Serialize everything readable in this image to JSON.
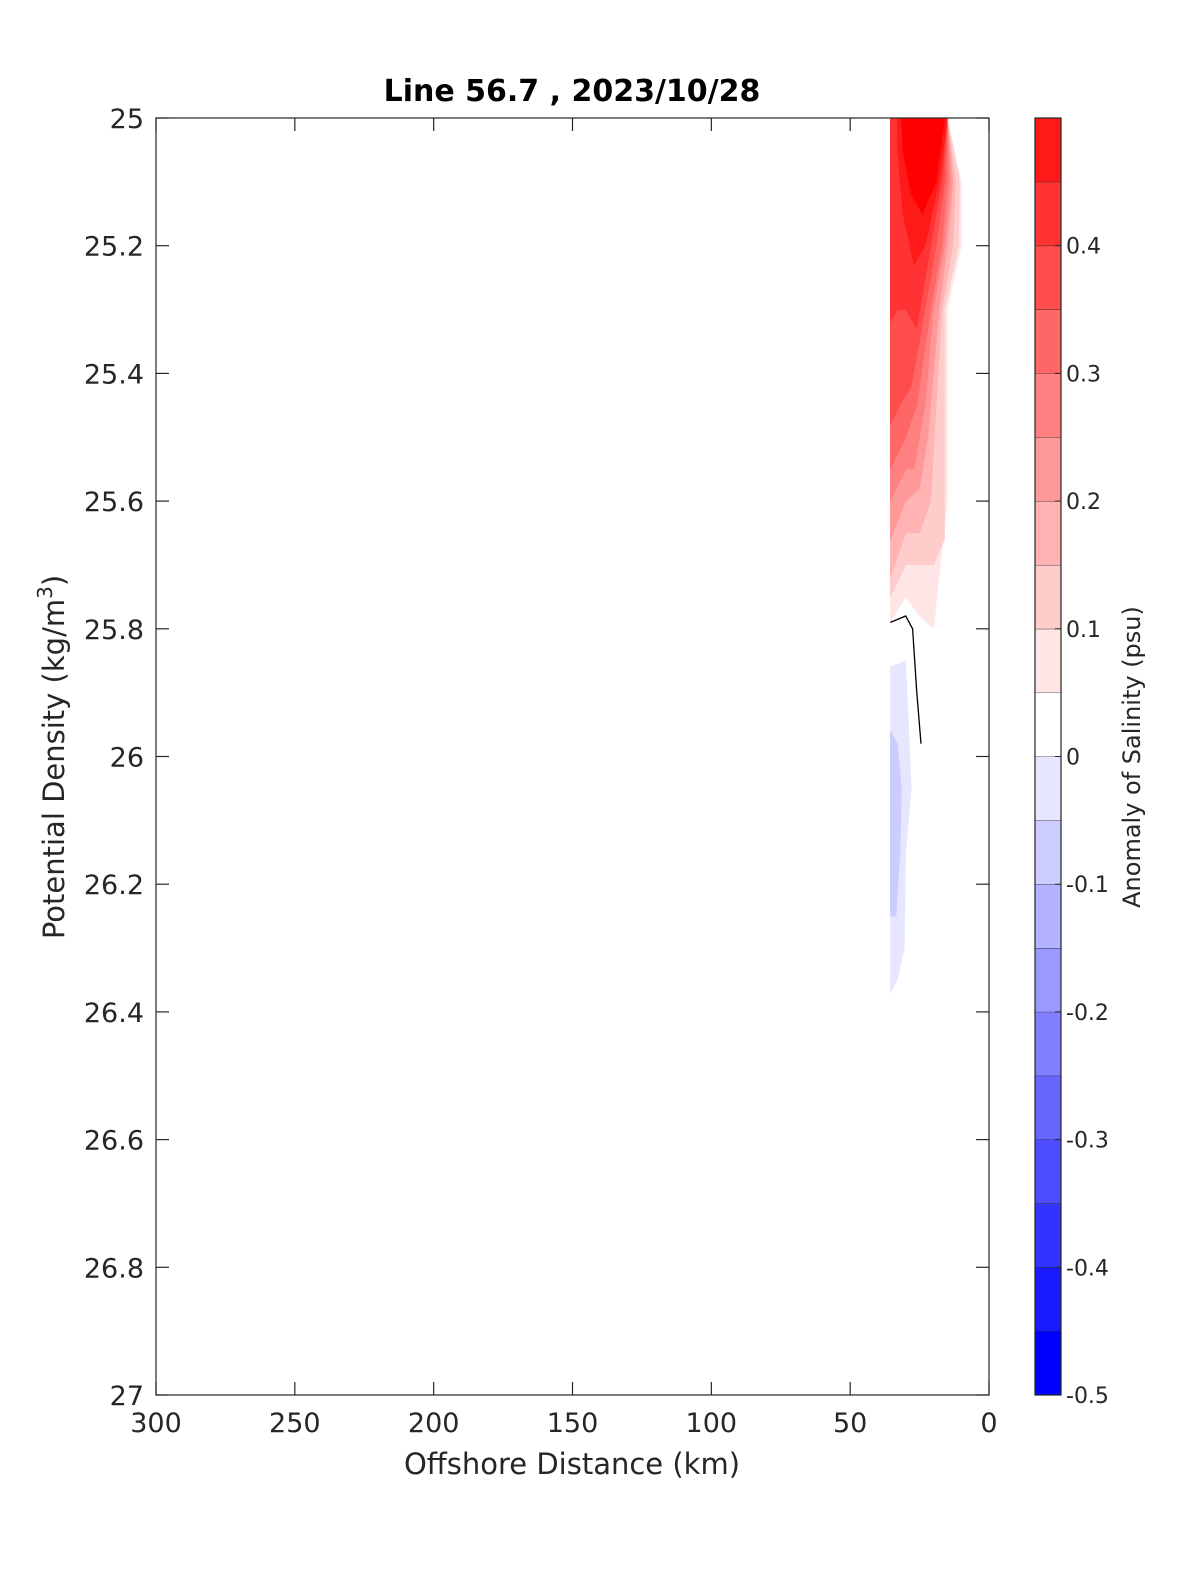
{
  "chart_data": {
    "type": "contour",
    "title": "Line 56.7 , 2023/10/28",
    "xlabel": "Offshore Distance (km)",
    "ylabel": {
      "text": "Potential Density (kg/m",
      "superscript": "3",
      "suffix": ")"
    },
    "x_range": [
      300,
      0
    ],
    "y_range": [
      25,
      27
    ],
    "x_reversed": true,
    "y_reversed": true,
    "x_ticks": [
      "300",
      "250",
      "200",
      "150",
      "100",
      "50",
      "0"
    ],
    "x_tick_values": [
      300,
      250,
      200,
      150,
      100,
      50,
      0
    ],
    "y_ticks": [
      "25",
      "25.2",
      "25.4",
      "25.6",
      "25.8",
      "26",
      "26.2",
      "26.4",
      "26.6",
      "26.8",
      "27"
    ],
    "y_tick_values": [
      25,
      25.2,
      25.4,
      25.6,
      25.8,
      26,
      26.2,
      26.4,
      26.6,
      26.8,
      27
    ],
    "colorbar": {
      "label": "Anomaly of Salinity (psu)",
      "range": [
        -0.5,
        0.5
      ],
      "tick_labels": [
        "-0.5",
        "-0.4",
        "-0.3",
        "-0.2",
        "-0.1",
        "0",
        "0.1",
        "0.2",
        "0.3",
        "0.4"
      ],
      "tick_values": [
        -0.5,
        -0.4,
        -0.3,
        -0.2,
        -0.1,
        0,
        0.1,
        0.2,
        0.3,
        0.4
      ],
      "levels": [
        -0.5,
        -0.45,
        -0.4,
        -0.35,
        -0.3,
        -0.25,
        -0.2,
        -0.15,
        -0.1,
        -0.05,
        0,
        0.05,
        0.1,
        0.15,
        0.2,
        0.25,
        0.3,
        0.35,
        0.4,
        0.45,
        0.5
      ],
      "colors": [
        "#0000ff",
        "#1a1aff",
        "#3333ff",
        "#4d4dff",
        "#6666ff",
        "#8080ff",
        "#9999ff",
        "#b3b3ff",
        "#ccccff",
        "#e6e6ff",
        "#ffffff",
        "#ffe6e6",
        "#ffcccc",
        "#ffb3b3",
        "#ff9999",
        "#ff8080",
        "#ff6666",
        "#ff4d4d",
        "#ff3333",
        "#ff1a1a"
      ]
    },
    "filled_regions": [
      {
        "level": 0.05,
        "color": "#ffe6e6",
        "points": [
          [
            35.5,
            25
          ],
          [
            15,
            25
          ],
          [
            10,
            25.1
          ],
          [
            10,
            25.2
          ],
          [
            15,
            25.3
          ],
          [
            15,
            25.6
          ],
          [
            20,
            25.8
          ],
          [
            25,
            25.78
          ],
          [
            30,
            25.75
          ],
          [
            35.5,
            25.79
          ]
        ]
      },
      {
        "level": 0.1,
        "color": "#ffcccc",
        "points": [
          [
            35.5,
            25
          ],
          [
            15,
            25
          ],
          [
            10.5,
            25.1
          ],
          [
            11,
            25.2
          ],
          [
            16,
            25.3
          ],
          [
            16,
            25.66
          ],
          [
            20,
            25.7
          ],
          [
            25,
            25.7
          ],
          [
            30,
            25.7
          ],
          [
            35.5,
            25.75
          ]
        ]
      },
      {
        "level": 0.15,
        "color": "#ffb3b3",
        "points": [
          [
            35.5,
            25
          ],
          [
            15,
            25
          ],
          [
            12,
            25.1
          ],
          [
            13,
            25.2
          ],
          [
            17,
            25.3
          ],
          [
            21,
            25.6
          ],
          [
            25,
            25.65
          ],
          [
            30,
            25.65
          ],
          [
            35.5,
            25.72
          ]
        ]
      },
      {
        "level": 0.2,
        "color": "#ff9999",
        "points": [
          [
            35.5,
            25
          ],
          [
            15,
            25
          ],
          [
            13,
            25.1
          ],
          [
            15,
            25.2
          ],
          [
            18,
            25.3
          ],
          [
            22,
            25.5
          ],
          [
            25,
            25.58
          ],
          [
            30,
            25.6
          ],
          [
            35.5,
            25.66
          ]
        ]
      },
      {
        "level": 0.25,
        "color": "#ff8080",
        "points": [
          [
            35.5,
            25
          ],
          [
            15,
            25
          ],
          [
            14,
            25.1
          ],
          [
            16,
            25.2
          ],
          [
            20,
            25.3
          ],
          [
            23,
            25.45
          ],
          [
            27,
            25.55
          ],
          [
            30,
            25.55
          ],
          [
            35.5,
            25.6
          ]
        ]
      },
      {
        "level": 0.3,
        "color": "#ff6666",
        "points": [
          [
            35.5,
            25
          ],
          [
            15,
            25
          ],
          [
            15,
            25.1
          ],
          [
            17,
            25.2
          ],
          [
            21,
            25.3
          ],
          [
            26,
            25.45
          ],
          [
            30,
            25.5
          ],
          [
            35.5,
            25.55
          ]
        ]
      },
      {
        "level": 0.35,
        "color": "#ff4d4d",
        "points": [
          [
            35.5,
            25
          ],
          [
            15,
            25
          ],
          [
            16,
            25.1
          ],
          [
            19,
            25.2
          ],
          [
            23,
            25.3
          ],
          [
            28,
            25.42
          ],
          [
            32,
            25.45
          ],
          [
            35.5,
            25.48
          ]
        ]
      },
      {
        "level": 0.4,
        "color": "#ff3333",
        "points": [
          [
            35.5,
            25
          ],
          [
            15,
            25
          ],
          [
            17,
            25.1
          ],
          [
            21,
            25.2
          ],
          [
            26,
            25.33
          ],
          [
            30,
            25.3
          ],
          [
            33,
            25.3
          ],
          [
            35.5,
            25.32
          ]
        ]
      },
      {
        "level": 0.45,
        "color": "#ff1a1a",
        "points": [
          [
            35.5,
            25
          ],
          [
            15,
            25
          ],
          [
            18,
            25.1
          ],
          [
            23,
            25.2
          ],
          [
            27,
            25.23
          ],
          [
            31,
            25.15
          ],
          [
            33,
            25.05
          ],
          [
            33,
            25
          ]
        ]
      },
      {
        "level": 0.5,
        "color": "#ff0000",
        "points": [
          [
            33,
            25
          ],
          [
            16,
            25
          ],
          [
            19,
            25.1
          ],
          [
            24,
            25.15
          ],
          [
            28,
            25.12
          ],
          [
            31,
            25.05
          ],
          [
            31.5,
            25
          ]
        ]
      },
      {
        "level": -0.05,
        "color": "#e6e6ff",
        "points": [
          [
            35.5,
            25.86
          ],
          [
            30,
            25.85
          ],
          [
            29,
            25.95
          ],
          [
            28,
            26.05
          ],
          [
            30,
            26.15
          ],
          [
            30.5,
            26.3
          ],
          [
            33,
            26.35
          ],
          [
            35.5,
            26.37
          ]
        ]
      },
      {
        "level": -0.1,
        "color": "#ccccff",
        "points": [
          [
            35.5,
            25.96
          ],
          [
            33,
            25.98
          ],
          [
            31.5,
            26.05
          ],
          [
            32,
            26.15
          ],
          [
            33.5,
            26.25
          ],
          [
            35.5,
            26.25
          ]
        ]
      }
    ],
    "contour_lines": [
      {
        "level": 0,
        "color": "#000000",
        "points": [
          [
            35.5,
            25.79
          ],
          [
            30,
            25.78
          ],
          [
            27.5,
            25.8
          ],
          [
            26,
            25.9
          ],
          [
            24.5,
            25.98
          ]
        ]
      }
    ],
    "grid": false,
    "colorbar_position": "right"
  }
}
